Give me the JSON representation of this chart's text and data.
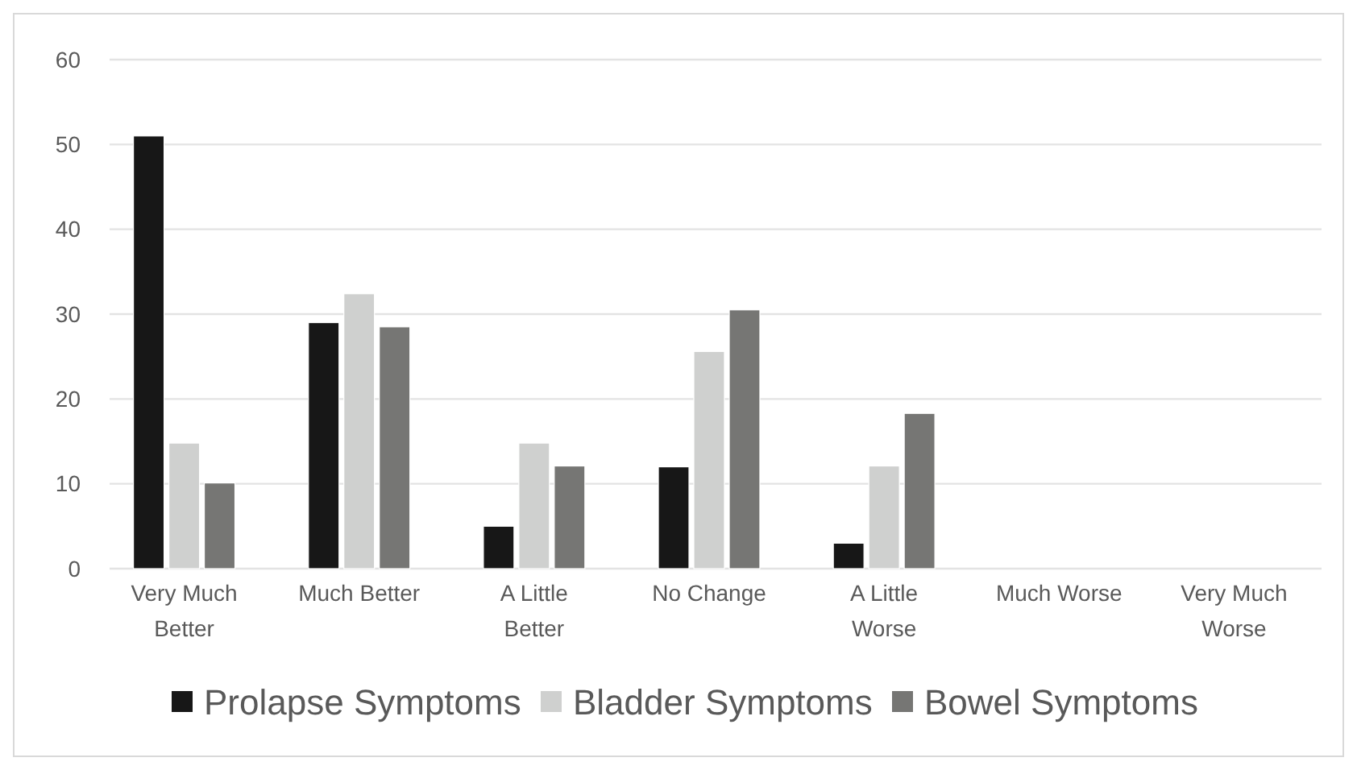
{
  "chart_data": {
    "type": "bar",
    "categories": [
      "Very Much Better",
      "Much Better",
      "A Little Better",
      "No Change",
      "A Little Worse",
      "Much Worse",
      "Very Much Worse"
    ],
    "series": [
      {
        "name": "Prolapse Symptoms",
        "color": "#171717",
        "values": [
          51,
          29,
          5,
          12,
          3,
          0,
          0
        ]
      },
      {
        "name": "Bladder Symptoms",
        "color": "#cfd0cf",
        "values": [
          14.8,
          32.4,
          14.8,
          25.6,
          12.1,
          0,
          0
        ]
      },
      {
        "name": "Bowel Symptoms",
        "color": "#767674",
        "values": [
          10.1,
          28.5,
          12.1,
          30.5,
          18.3,
          0,
          0
        ]
      }
    ],
    "ylim": [
      0,
      60
    ],
    "yticks": [
      0,
      10,
      20,
      30,
      40,
      50,
      60
    ],
    "grid": "y",
    "legend": "bottom"
  }
}
